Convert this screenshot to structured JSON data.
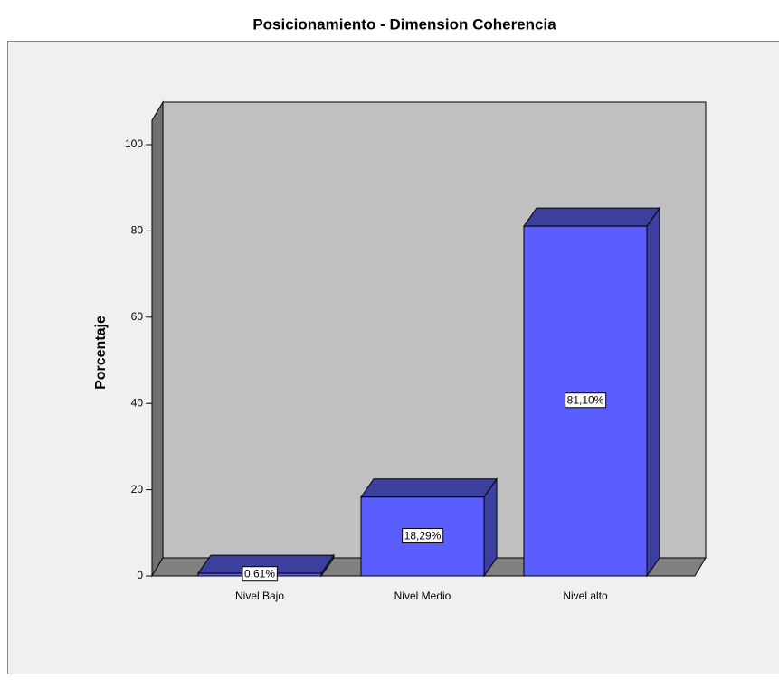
{
  "chart_data": {
    "type": "bar3d",
    "title": "Posicionamiento - Dimension Coherencia",
    "y_label": "Porcentaje",
    "categories": [
      "Nivel Bajo",
      "Nivel Medio",
      "Nivel alto"
    ],
    "values": [
      0.61,
      18.29,
      81.1
    ],
    "value_labels": [
      "0,61%",
      "18,29%",
      "81,10%"
    ],
    "color": "#5a5eff",
    "ylim": [
      0,
      100
    ],
    "yticks": [
      0,
      20,
      40,
      60,
      80,
      100
    ]
  }
}
